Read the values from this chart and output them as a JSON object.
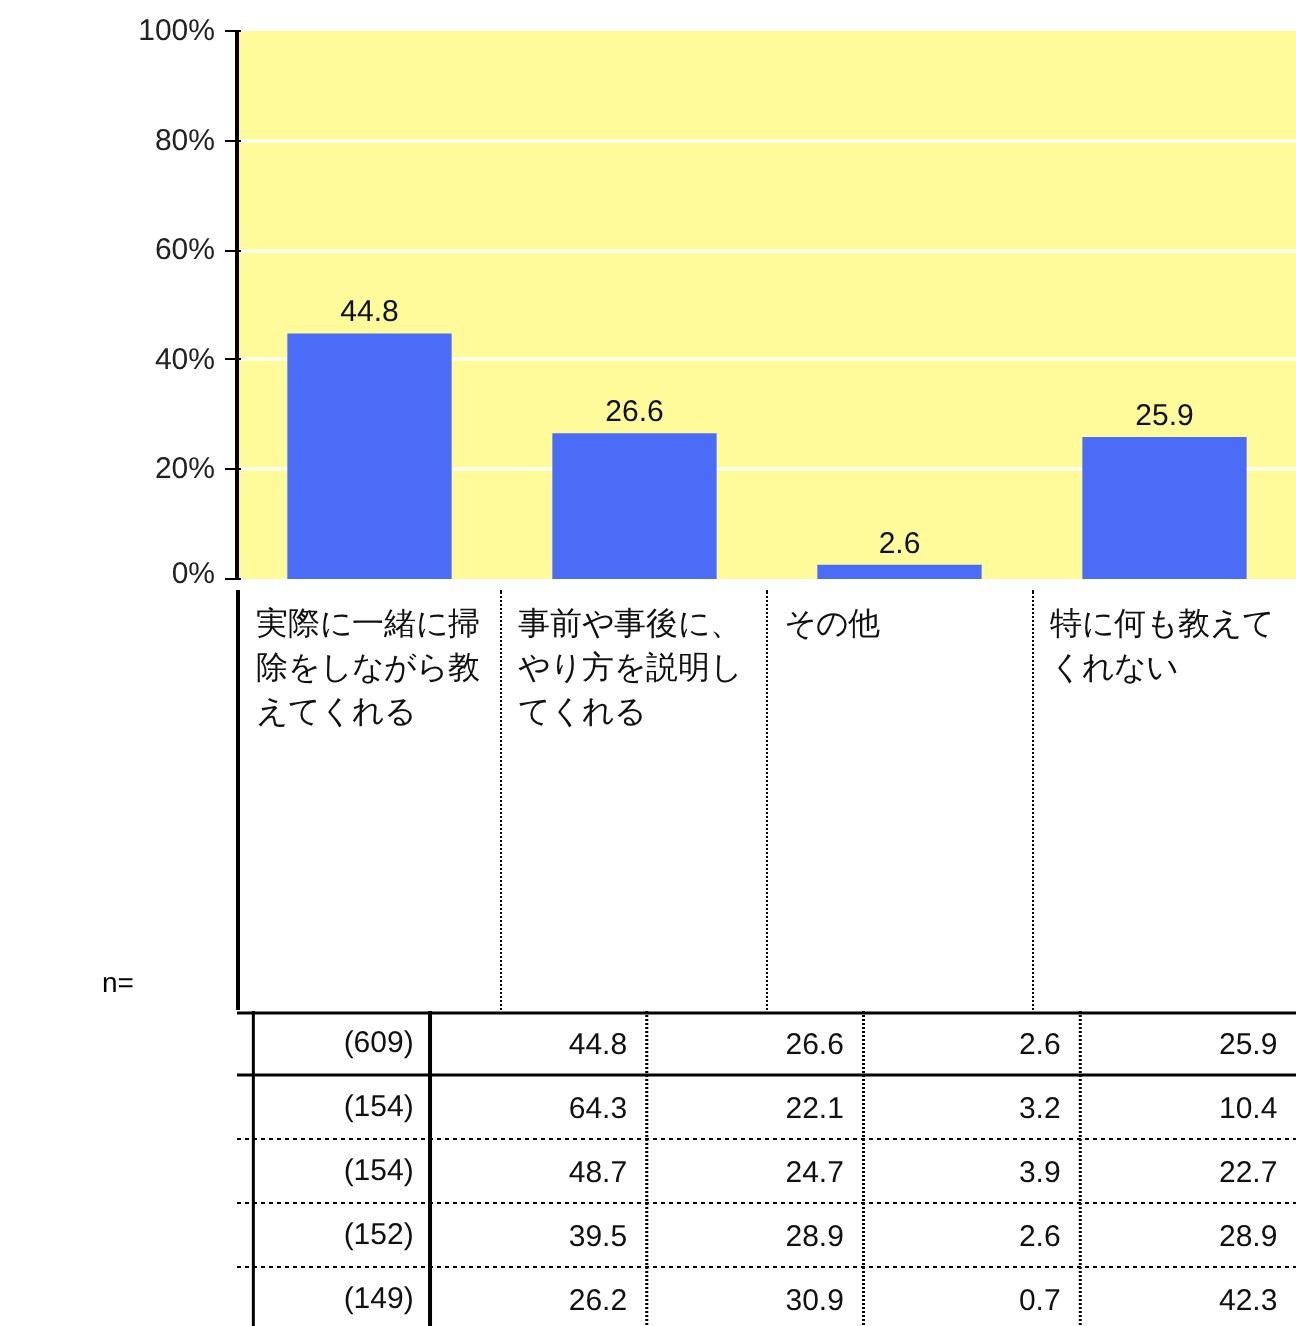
{
  "chart_data": {
    "type": "bar",
    "categories": [
      "実際に一緒に掃除をしながら教えてくれる",
      "事前や事後に、やり方を説明してくれる",
      "その他",
      "特に何も教えてくれない"
    ],
    "values": [
      44.8,
      26.6,
      2.6,
      25.9
    ],
    "color": "#4a6cf7",
    "data_labels": true,
    "ylim": [
      0,
      100
    ],
    "yticks": [
      {
        "value": 0,
        "label": "0%"
      },
      {
        "value": 20,
        "label": "20%"
      },
      {
        "value": 40,
        "label": "40%"
      },
      {
        "value": 60,
        "label": "60%"
      },
      {
        "value": 80,
        "label": "80%"
      },
      {
        "value": 100,
        "label": "100%"
      }
    ],
    "grid": "y",
    "annotations": [
      "n=",
      "(609)",
      "44.8",
      "26.6",
      "2.6",
      "25.9",
      "(154)",
      "64.3",
      "22.1",
      "3.2",
      "10.4",
      "(154)",
      "48.7",
      "24.7",
      "3.9",
      "22.7",
      "(152)",
      "39.5",
      "28.9",
      "2.6",
      "28.9",
      "(149)",
      "26.2",
      "30.9",
      "0.7",
      "42.3"
    ]
  }
}
